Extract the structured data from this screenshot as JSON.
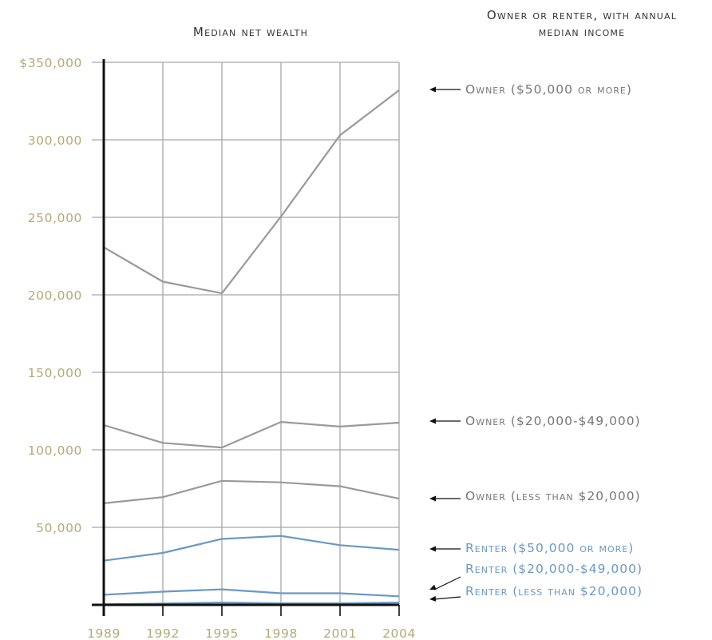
{
  "chart_data": {
    "type": "line",
    "title": "Median net wealth",
    "legend_title_line1": "Owner or renter, with annual",
    "legend_title_line2": "median income",
    "x": [
      "1989",
      "1992",
      "1995",
      "1998",
      "2001",
      "2004"
    ],
    "y_ticks": [
      "$350,000",
      "300,000",
      "250,000",
      "200,000",
      "150,000",
      "100,000",
      "50,000"
    ],
    "y_tick_values": [
      350000,
      300000,
      250000,
      200000,
      150000,
      100000,
      50000
    ],
    "ylim": [
      0,
      350000
    ],
    "grid": true,
    "colors": {
      "owner": "#999999",
      "renter": "#6b98c4",
      "tick_text": "#b5a977",
      "axis": "#111111",
      "grid": "#a8a8a8"
    },
    "series": [
      {
        "name": "Owner ($50,000 or more)",
        "group": "owner",
        "values": [
          230700,
          208500,
          201000,
          250500,
          303000,
          332000
        ]
      },
      {
        "name": "Owner ($20,000-$49,000)",
        "group": "owner",
        "values": [
          116000,
          104500,
          101500,
          118000,
          115000,
          117500
        ]
      },
      {
        "name": "Owner (less than $20,000)",
        "group": "owner",
        "values": [
          65500,
          69500,
          80000,
          79000,
          76500,
          68500
        ]
      },
      {
        "name": "Renter ($50,000 or more)",
        "group": "renter",
        "values": [
          28500,
          33500,
          42500,
          44500,
          38500,
          35500
        ]
      },
      {
        "name": "Renter ($20,000-$49,000)",
        "group": "renter",
        "values": [
          6500,
          8500,
          10000,
          7500,
          7500,
          5500
        ]
      },
      {
        "name": "Renter (less than $20,000)",
        "group": "renter",
        "values": [
          300,
          800,
          1500,
          1000,
          1000,
          1500
        ]
      }
    ]
  }
}
